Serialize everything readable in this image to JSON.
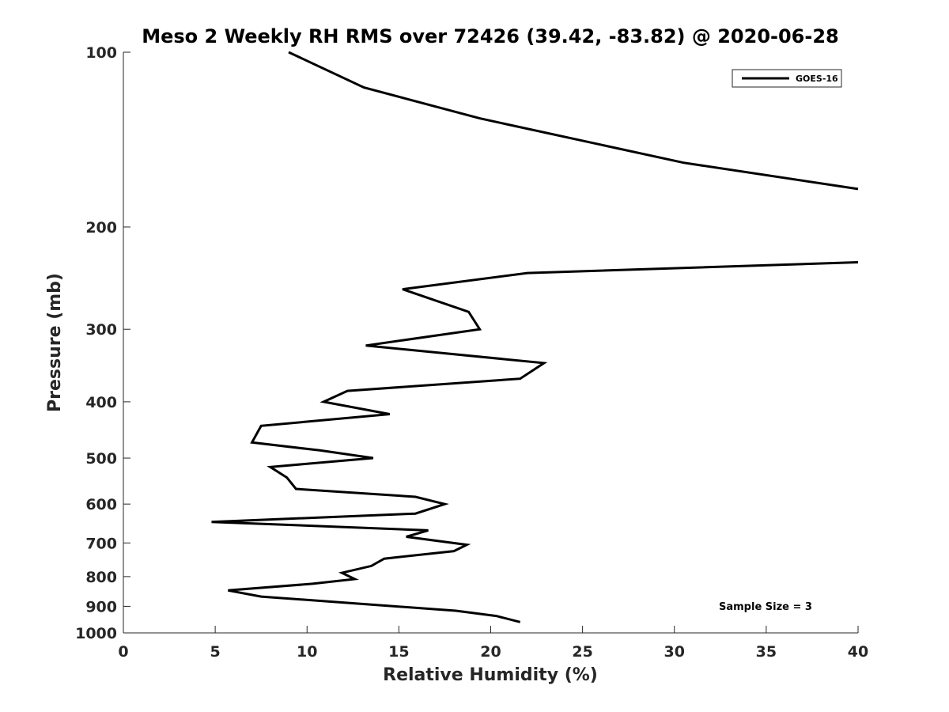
{
  "chart_data": {
    "type": "line",
    "title": "Meso 2 Weekly RH RMS over 72426 (39.42, -83.82) @ 2020-06-28",
    "xlabel": "Relative Humidity (%)",
    "ylabel": "Pressure (mb)",
    "xlim": [
      0,
      40
    ],
    "ylim": [
      100,
      1000
    ],
    "yscale": "log",
    "y_reversed": true,
    "grid": false,
    "legend_position": "top-right",
    "x_ticks": [
      "0",
      "5",
      "10",
      "15",
      "20",
      "25",
      "30",
      "35",
      "40"
    ],
    "y_ticks": [
      "100",
      "200",
      "300",
      "400",
      "500",
      "600",
      "700",
      "800",
      "900",
      "1000"
    ],
    "series": [
      {
        "name": "GOES-16",
        "color": "#000000",
        "segments": [
          [
            [
              9.0,
              100
            ],
            [
              13.1,
              115
            ],
            [
              19.4,
              130
            ],
            [
              30.5,
              155
            ],
            [
              40.0,
              172
            ]
          ],
          [
            [
              40.0,
              230
            ],
            [
              22.0,
              240
            ],
            [
              15.2,
              256
            ],
            [
              18.8,
              280
            ],
            [
              19.4,
              300
            ],
            [
              13.2,
              320
            ],
            [
              22.9,
              343
            ],
            [
              21.6,
              365
            ],
            [
              12.2,
              383
            ],
            [
              10.9,
              400
            ],
            [
              14.5,
              420
            ],
            [
              7.5,
              440
            ],
            [
              7.0,
              470
            ],
            [
              10.7,
              485
            ],
            [
              13.6,
              500
            ],
            [
              8.0,
              518
            ],
            [
              8.9,
              540
            ],
            [
              9.4,
              565
            ],
            [
              15.9,
              583
            ],
            [
              17.5,
              600
            ],
            [
              15.9,
              623
            ],
            [
              4.8,
              644
            ],
            [
              16.6,
              666
            ],
            [
              15.4,
              683
            ],
            [
              18.7,
              705
            ],
            [
              18.0,
              723
            ],
            [
              14.2,
              745
            ],
            [
              13.5,
              767
            ],
            [
              11.9,
              788
            ],
            [
              12.6,
              808
            ],
            [
              10.3,
              823
            ],
            [
              5.7,
              845
            ],
            [
              7.5,
              866
            ],
            [
              18.1,
              916
            ],
            [
              20.3,
              935
            ],
            [
              21.6,
              958
            ]
          ]
        ]
      }
    ],
    "annotations": [
      "Sample Size = 3"
    ]
  }
}
